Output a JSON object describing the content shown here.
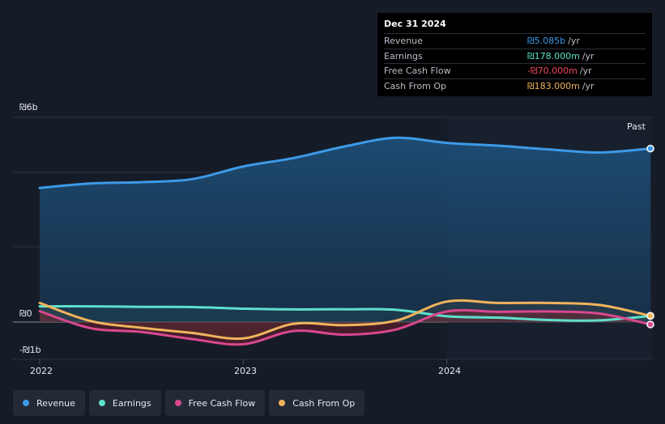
{
  "tooltip": {
    "date": "Dec 31 2024",
    "rows": [
      {
        "label": "Revenue",
        "value": "₪5.085b",
        "unit": "/yr",
        "color": "#3d9ae8"
      },
      {
        "label": "Earnings",
        "value": "₪178.000m",
        "unit": "/yr",
        "color": "#5de0cc"
      },
      {
        "label": "Free Cash Flow",
        "value": "-₪70.000m",
        "unit": "/yr",
        "color": "#f04a5a"
      },
      {
        "label": "Cash From Op",
        "value": "₪183.000m",
        "unit": "/yr",
        "color": "#f0b45c"
      }
    ]
  },
  "axis": {
    "y_top": "₪6b",
    "y_zero": "₪0",
    "y_bottom": "-₪1b",
    "past": "Past",
    "x_ticks": [
      "2022",
      "2023",
      "2024"
    ]
  },
  "legend": [
    {
      "label": "Revenue",
      "color": "#3d9ae8"
    },
    {
      "label": "Earnings",
      "color": "#5de0cc"
    },
    {
      "label": "Free Cash Flow",
      "color": "#d9488f"
    },
    {
      "label": "Cash From Op",
      "color": "#f0b45c"
    }
  ],
  "chart_data": {
    "type": "line",
    "ylim": [
      -1000,
      5500
    ],
    "xlim": [
      2022.0,
      2025.0
    ],
    "x_ticks": [
      2022,
      2023,
      2024
    ],
    "grid": true,
    "series": [
      {
        "name": "Revenue",
        "color": "#3d9ae8",
        "x": [
          2022.0,
          2022.25,
          2022.5,
          2022.75,
          2023.0,
          2023.25,
          2023.5,
          2023.75,
          2024.0,
          2024.25,
          2024.5,
          2024.75,
          2025.0
        ],
        "values": [
          3930,
          4060,
          4100,
          4190,
          4560,
          4810,
          5150,
          5400,
          5250,
          5170,
          5060,
          4970,
          5085
        ]
      },
      {
        "name": "Earnings",
        "color": "#5de0cc",
        "x": [
          2022.0,
          2022.25,
          2022.5,
          2022.75,
          2023.0,
          2023.25,
          2023.5,
          2023.75,
          2024.0,
          2024.25,
          2024.5,
          2024.75,
          2025.0
        ],
        "values": [
          460,
          460,
          445,
          440,
          390,
          370,
          375,
          360,
          170,
          130,
          60,
          50,
          178
        ]
      },
      {
        "name": "Free Cash Flow",
        "color": "#d9488f",
        "x": [
          2022.0,
          2022.25,
          2022.5,
          2022.75,
          2023.0,
          2023.25,
          2023.5,
          2023.75,
          2024.0,
          2024.25,
          2024.5,
          2024.75,
          2025.0
        ],
        "values": [
          320,
          -180,
          -290,
          -500,
          -650,
          -260,
          -370,
          -220,
          310,
          300,
          310,
          250,
          -70
        ]
      },
      {
        "name": "Cash From Op",
        "color": "#f0b45c",
        "x": [
          2022.0,
          2022.25,
          2022.5,
          2022.75,
          2023.0,
          2023.25,
          2023.5,
          2023.75,
          2024.0,
          2024.25,
          2024.5,
          2024.75,
          2025.0
        ],
        "values": [
          560,
          30,
          -170,
          -320,
          -480,
          -50,
          -90,
          40,
          600,
          560,
          560,
          500,
          183
        ]
      }
    ]
  }
}
